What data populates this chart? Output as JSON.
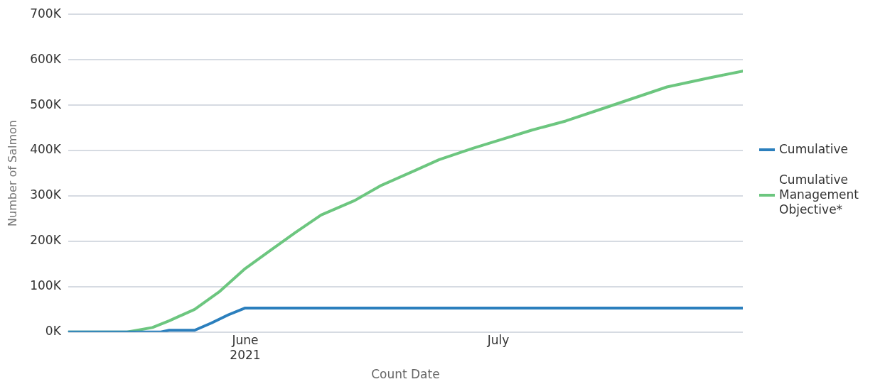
{
  "chart_data": {
    "type": "line",
    "xlabel": "Count Date",
    "ylabel": "Number of Salmon",
    "xlim": [
      "2021-05-11",
      "2021-07-30"
    ],
    "xticks": [
      {
        "value": "2021-06-01",
        "label": "June\n2021"
      },
      {
        "value": "2021-07-01",
        "label": "July"
      }
    ],
    "ylim": [
      0,
      700000
    ],
    "yticks": [
      {
        "value": 0,
        "label": "0K"
      },
      {
        "value": 100000,
        "label": "100K"
      },
      {
        "value": 200000,
        "label": "200K"
      },
      {
        "value": 300000,
        "label": "300K"
      },
      {
        "value": 400000,
        "label": "400K"
      },
      {
        "value": 500000,
        "label": "500K"
      },
      {
        "value": 600000,
        "label": "600K"
      },
      {
        "value": 700000,
        "label": "700K"
      }
    ],
    "grid": "y",
    "legend": "right",
    "marker": "none",
    "line_style": "solid",
    "series": [
      {
        "name": "Cumulative",
        "color": "#2b7fbd",
        "x": [
          "2021-05-11",
          "2021-05-18",
          "2021-05-22",
          "2021-05-23",
          "2021-05-26",
          "2021-05-28",
          "2021-05-30",
          "2021-06-01",
          "2021-06-15",
          "2021-07-01",
          "2021-07-15",
          "2021-07-30"
        ],
        "values": [
          0,
          0,
          0,
          4000,
          4000,
          20000,
          38000,
          53000,
          53000,
          53000,
          53000,
          53000
        ]
      },
      {
        "name": "Cumulative Management Objective*",
        "color": "#6cc67f",
        "x": [
          "2021-05-11",
          "2021-05-18",
          "2021-05-21",
          "2021-05-23",
          "2021-05-26",
          "2021-05-29",
          "2021-06-01",
          "2021-06-04",
          "2021-06-07",
          "2021-06-10",
          "2021-06-14",
          "2021-06-17",
          "2021-06-21",
          "2021-06-24",
          "2021-06-28",
          "2021-07-01",
          "2021-07-05",
          "2021-07-09",
          "2021-07-13",
          "2021-07-17",
          "2021-07-21",
          "2021-07-26",
          "2021-07-30"
        ],
        "values": [
          0,
          0,
          10000,
          25000,
          50000,
          90000,
          140000,
          180000,
          220000,
          258000,
          290000,
          322000,
          355000,
          380000,
          405000,
          422000,
          445000,
          465000,
          490000,
          515000,
          540000,
          560000,
          575000
        ]
      }
    ]
  }
}
